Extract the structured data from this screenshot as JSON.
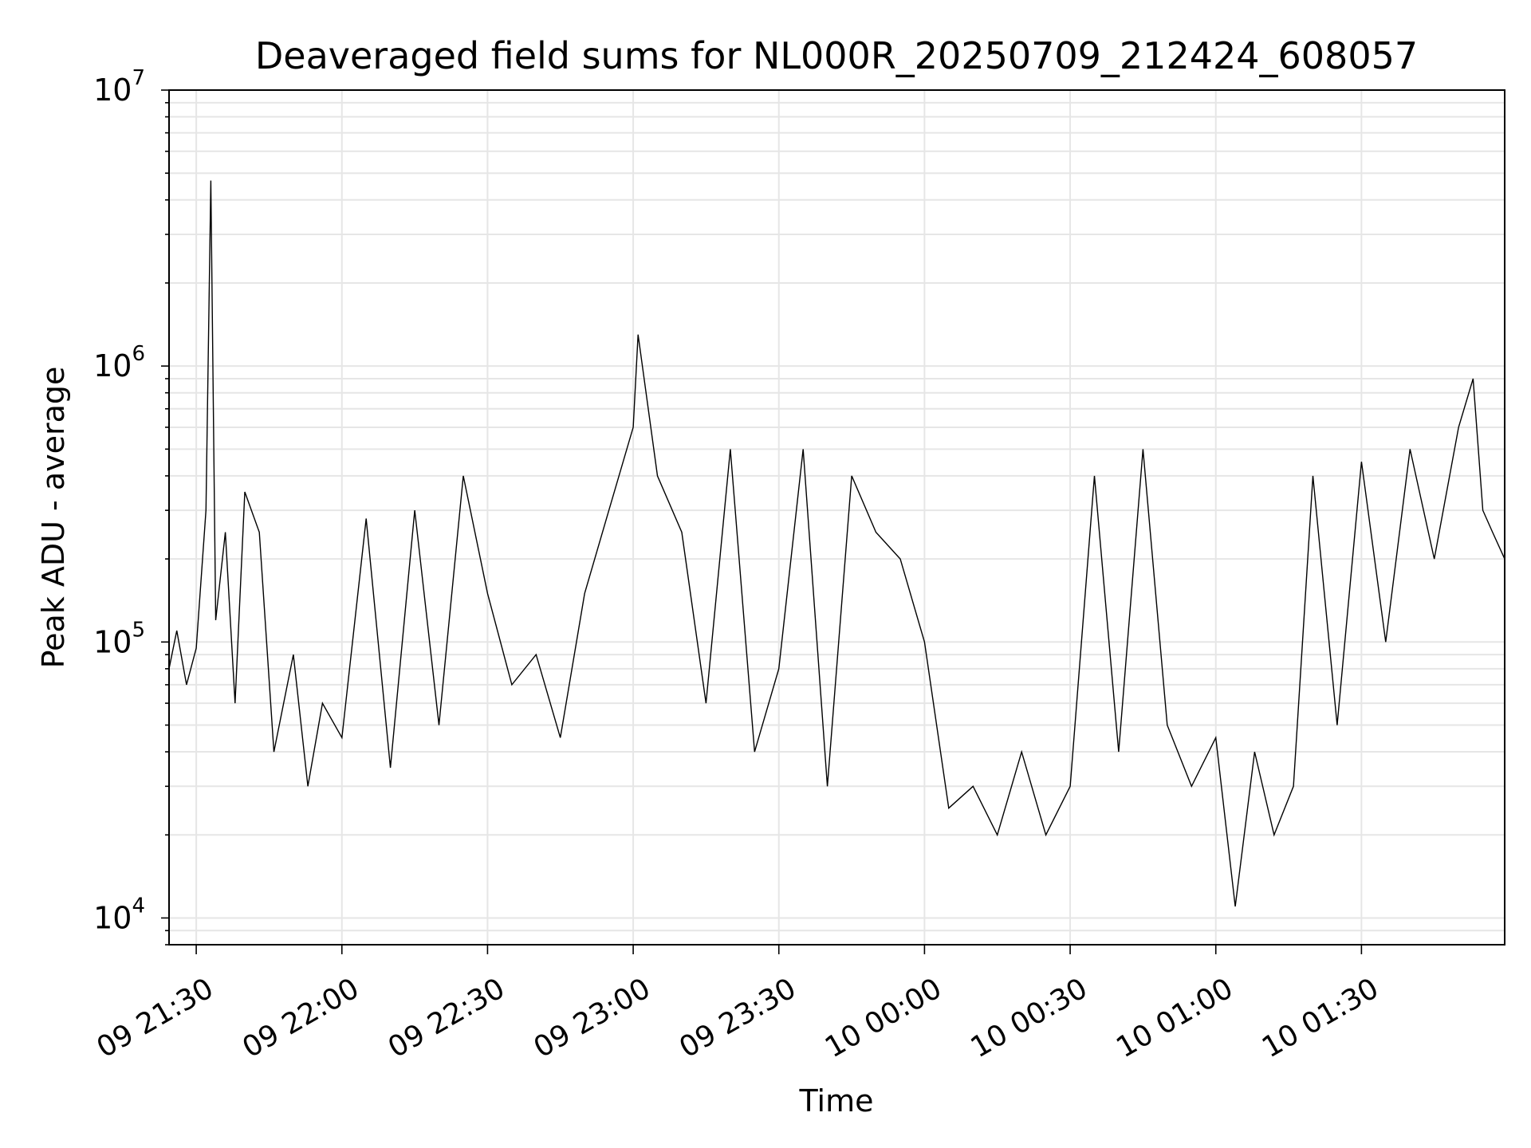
{
  "chart_data": {
    "type": "line",
    "title": "Deaveraged field sums for NL000R_20250709_212424_608057",
    "xlabel": "Time",
    "ylabel": "Peak ADU - average",
    "yscale": "log",
    "ylim": [
      8000,
      10000000
    ],
    "xlim": [
      "2025-07-09 21:24:24",
      "2025-07-10 01:59:30"
    ],
    "grid": true,
    "line_color": "#000000",
    "grid_color": "#e6e6e6",
    "x_ticks": [
      "09 21:30",
      "09 22:00",
      "09 22:30",
      "09 23:00",
      "09 23:30",
      "10 00:00",
      "10 00:30",
      "10 01:00",
      "10 01:30"
    ],
    "y_ticks": [
      {
        "base": "10",
        "exp": "4",
        "value": 10000
      },
      {
        "base": "10",
        "exp": "5",
        "value": 100000
      },
      {
        "base": "10",
        "exp": "6",
        "value": 1000000
      },
      {
        "base": "10",
        "exp": "7",
        "value": 10000000
      }
    ],
    "x": [
      "2025-07-09 21:24:24",
      "2025-07-09 21:26:00",
      "2025-07-09 21:28:00",
      "2025-07-09 21:30:00",
      "2025-07-09 21:32:00",
      "2025-07-09 21:33:00",
      "2025-07-09 21:34:00",
      "2025-07-09 21:36:00",
      "2025-07-09 21:38:00",
      "2025-07-09 21:40:00",
      "2025-07-09 21:43:00",
      "2025-07-09 21:46:00",
      "2025-07-09 21:50:00",
      "2025-07-09 21:53:00",
      "2025-07-09 21:56:00",
      "2025-07-09 22:00:00",
      "2025-07-09 22:05:00",
      "2025-07-09 22:10:00",
      "2025-07-09 22:15:00",
      "2025-07-09 22:20:00",
      "2025-07-09 22:25:00",
      "2025-07-09 22:30:00",
      "2025-07-09 22:35:00",
      "2025-07-09 22:40:00",
      "2025-07-09 22:45:00",
      "2025-07-09 22:50:00",
      "2025-07-09 22:55:00",
      "2025-07-09 23:00:00",
      "2025-07-09 23:01:00",
      "2025-07-09 23:05:00",
      "2025-07-09 23:10:00",
      "2025-07-09 23:15:00",
      "2025-07-09 23:20:00",
      "2025-07-09 23:25:00",
      "2025-07-09 23:30:00",
      "2025-07-09 23:35:00",
      "2025-07-09 23:40:00",
      "2025-07-09 23:45:00",
      "2025-07-09 23:50:00",
      "2025-07-09 23:55:00",
      "2025-07-10 00:00:00",
      "2025-07-10 00:05:00",
      "2025-07-10 00:10:00",
      "2025-07-10 00:15:00",
      "2025-07-10 00:20:00",
      "2025-07-10 00:25:00",
      "2025-07-10 00:30:00",
      "2025-07-10 00:35:00",
      "2025-07-10 00:40:00",
      "2025-07-10 00:45:00",
      "2025-07-10 00:50:00",
      "2025-07-10 00:55:00",
      "2025-07-10 01:00:00",
      "2025-07-10 01:04:00",
      "2025-07-10 01:08:00",
      "2025-07-10 01:12:00",
      "2025-07-10 01:16:00",
      "2025-07-10 01:20:00",
      "2025-07-10 01:25:00",
      "2025-07-10 01:30:00",
      "2025-07-10 01:35:00",
      "2025-07-10 01:40:00",
      "2025-07-10 01:45:00",
      "2025-07-10 01:50:00",
      "2025-07-10 01:53:00",
      "2025-07-10 01:55:00",
      "2025-07-10 01:57:00",
      "2025-07-10 01:59:30"
    ],
    "y": [
      80000,
      110000,
      70000,
      95000,
      300000,
      4700000,
      120000,
      250000,
      60000,
      350000,
      250000,
      40000,
      90000,
      30000,
      60000,
      45000,
      280000,
      35000,
      300000,
      50000,
      400000,
      150000,
      70000,
      90000,
      45000,
      150000,
      300000,
      600000,
      1300000,
      400000,
      250000,
      60000,
      500000,
      40000,
      80000,
      500000,
      30000,
      400000,
      250000,
      200000,
      100000,
      25000,
      30000,
      20000,
      40000,
      20000,
      30000,
      400000,
      40000,
      500000,
      50000,
      30000,
      45000,
      11000,
      40000,
      20000,
      30000,
      400000,
      50000,
      450000,
      100000,
      500000,
      200000,
      600000,
      900000,
      300000,
      250000,
      200000
    ]
  }
}
